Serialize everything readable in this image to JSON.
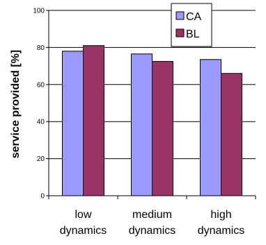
{
  "chart_data": {
    "type": "bar",
    "title": "",
    "xlabel": "",
    "ylabel": "service provided [%]",
    "ylim": [
      0,
      100
    ],
    "yticks": [
      0,
      20,
      40,
      60,
      80,
      100
    ],
    "categories": [
      [
        "low",
        "dynamics"
      ],
      [
        "medium",
        "dynamics"
      ],
      [
        "high",
        "dynamics"
      ]
    ],
    "series": [
      {
        "name": "CA",
        "color": "#9999ff",
        "values": [
          78,
          76.5,
          73.5
        ]
      },
      {
        "name": "BL",
        "color": "#993366",
        "values": [
          81,
          72.5,
          66
        ]
      }
    ],
    "grid": true,
    "legend_position": "top-right"
  }
}
